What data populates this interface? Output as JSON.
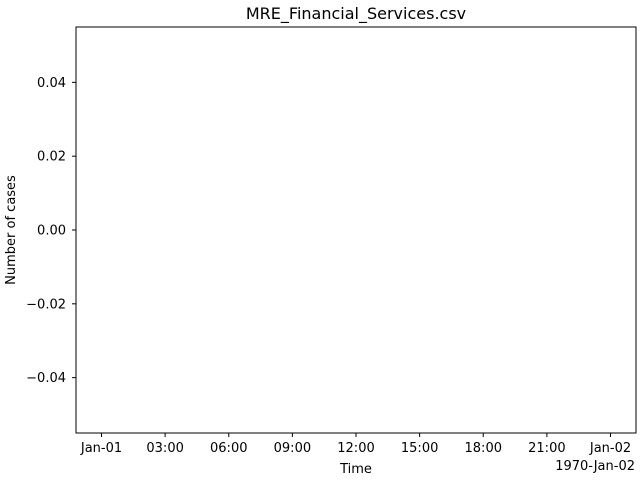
{
  "chart_data": {
    "type": "line",
    "title": "MRE_Financial_Services.csv",
    "xlabel": "Time",
    "ylabel": "Number of cases",
    "x_offset_label": "1970-Jan-02",
    "x_tick_labels": [
      "Jan-01",
      "03:00",
      "06:00",
      "09:00",
      "12:00",
      "15:00",
      "18:00",
      "21:00",
      "Jan-02"
    ],
    "y_ticks": [
      0.04,
      0.02,
      0.0,
      -0.02,
      -0.04
    ],
    "y_tick_labels": [
      "0.04",
      "0.02",
      "0.00",
      "−0.02",
      "−0.04"
    ],
    "ylim": [
      -0.055,
      0.055
    ],
    "grid": false,
    "series": []
  }
}
